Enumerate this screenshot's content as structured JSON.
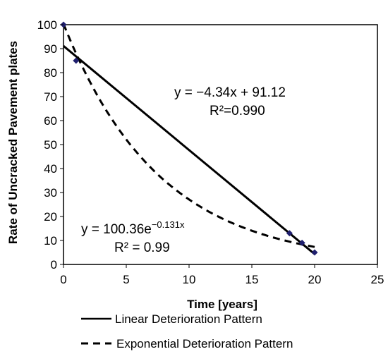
{
  "chart_data": {
    "type": "scatter",
    "title": "",
    "xlabel": "Time [years]",
    "ylabel": "Rate of Uncracked Pavement plates",
    "xlim": [
      0,
      25
    ],
    "ylim": [
      0,
      100
    ],
    "xticks": [
      "0",
      "5",
      "10",
      "15",
      "20",
      "25"
    ],
    "yticks": [
      "0",
      "10",
      "20",
      "30",
      "40",
      "50",
      "60",
      "70",
      "80",
      "90",
      "100"
    ],
    "grid": false,
    "marker_color": "#1f1f6e",
    "points": [
      {
        "x": 0,
        "y": 100
      },
      {
        "x": 1,
        "y": 85
      },
      {
        "x": 18,
        "y": 13
      },
      {
        "x": 19,
        "y": 9
      },
      {
        "x": 20,
        "y": 5
      }
    ],
    "fits": [
      {
        "name": "Linear Deterioration Pattern",
        "style": "solid",
        "slope": -4.34,
        "intercept": 91.12,
        "x_range": [
          0,
          20
        ],
        "equation": "y = −4.34x + 91.12",
        "r2": "R²=0.990"
      },
      {
        "name": "Exponential Deterioration Pattern",
        "style": "dashed",
        "a": 100.36,
        "b": -0.131,
        "x_range": [
          0,
          20
        ],
        "equation_base": "y = 100.36e",
        "equation_exp": "−0.131x",
        "r2": "R² = 0.99"
      }
    ],
    "legend": {
      "placement": "bottom",
      "entries": [
        "Linear Deterioration Pattern",
        "Exponential Deterioration Pattern"
      ]
    }
  }
}
